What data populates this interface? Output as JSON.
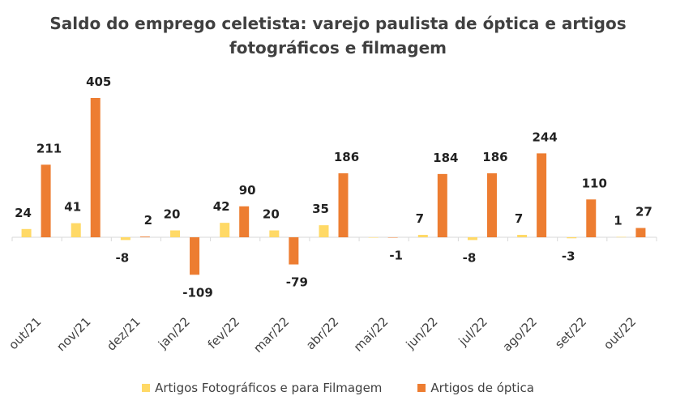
{
  "chart_data": {
    "type": "bar",
    "title_line1": "Saldo do emprego celetista: varejo paulista de óptica e artigos",
    "title_line2": "fotográficos e filmagem",
    "categories": [
      "out/21",
      "nov/21",
      "dez/21",
      "jan/22",
      "fev/22",
      "mar/22",
      "abr/22",
      "mai/22",
      "jun/22",
      "jul/22",
      "ago/22",
      "set/22",
      "out/22"
    ],
    "series": [
      {
        "name": "Artigos Fotográficos e para Filmagem",
        "color": "#FFD966",
        "values": [
          24,
          41,
          -8,
          20,
          42,
          20,
          35,
          0,
          7,
          -8,
          7,
          -3,
          1
        ],
        "labels": [
          "24",
          "41",
          "-8",
          "20",
          "42",
          "20",
          "35",
          "",
          "7",
          "-8",
          "7",
          "-3",
          "1"
        ]
      },
      {
        "name": "Artigos de óptica",
        "color": "#ED7D31",
        "values": [
          211,
          405,
          2,
          -109,
          90,
          -79,
          186,
          -1,
          184,
          186,
          244,
          110,
          27
        ],
        "labels": [
          "211",
          "405",
          "2",
          "-109",
          "90",
          "-79",
          "186",
          "-1",
          "184",
          "186",
          "244",
          "110",
          "27"
        ]
      }
    ],
    "legend_position": "bottom",
    "grid": false
  }
}
